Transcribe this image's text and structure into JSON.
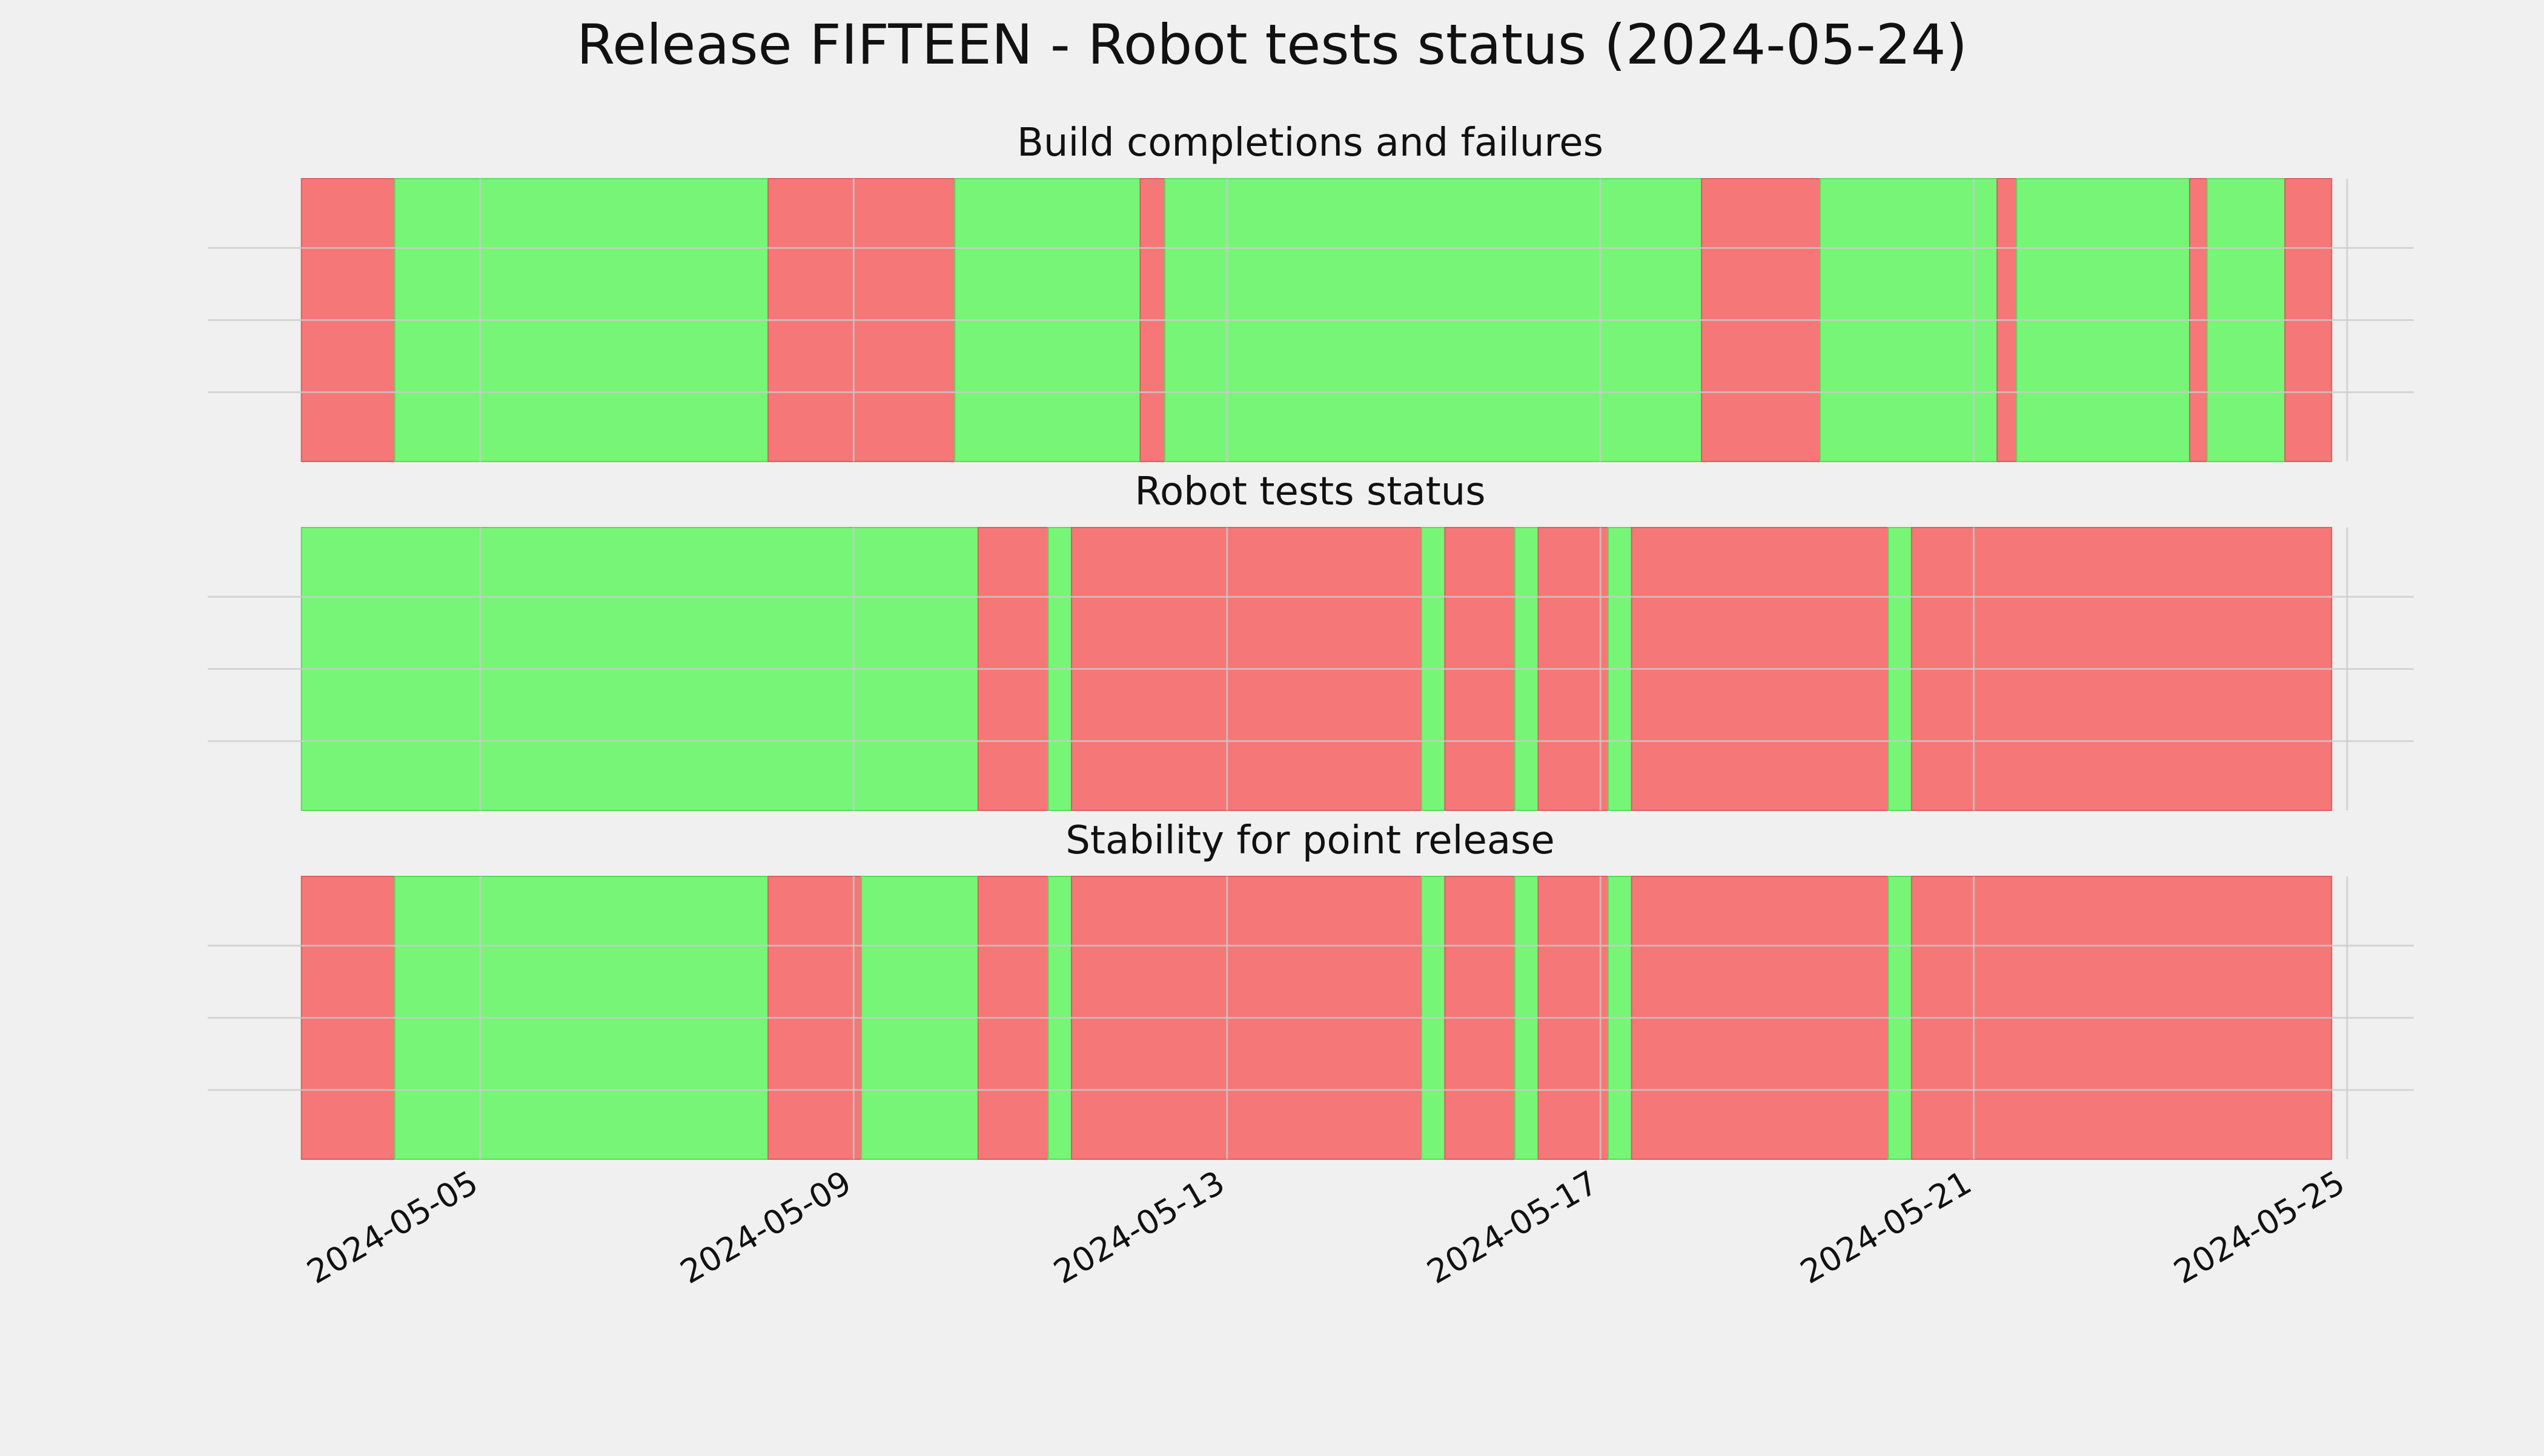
{
  "figure": {
    "title": "Release FIFTEEN - Robot tests status (2024-05-24)"
  },
  "colors": {
    "background": "#f0f0f0",
    "pass": "#77f577",
    "fail": "#f57777",
    "grid": "#cbcbcb"
  },
  "chart_data": [
    {
      "type": "timeline",
      "title": "Build completions and failures",
      "grid": true,
      "x_axis": {
        "min": "2024-05-03",
        "max": "2024-05-25",
        "ticks": [
          "2024-05-05",
          "2024-05-09",
          "2024-05-13",
          "2024-05-17",
          "2024-05-21",
          "2024-05-25"
        ]
      },
      "segments": [
        {
          "start": "2024-05-03 02:00",
          "end": "2024-05-04 02:00",
          "status": "fail"
        },
        {
          "start": "2024-05-04 02:00",
          "end": "2024-05-08 02:00",
          "status": "pass"
        },
        {
          "start": "2024-05-08 02:00",
          "end": "2024-05-10 02:00",
          "status": "fail"
        },
        {
          "start": "2024-05-10 02:00",
          "end": "2024-05-12 01:40",
          "status": "pass"
        },
        {
          "start": "2024-05-12 01:40",
          "end": "2024-05-12 08:00",
          "status": "fail"
        },
        {
          "start": "2024-05-12 08:00",
          "end": "2024-05-18 02:00",
          "status": "pass"
        },
        {
          "start": "2024-05-18 02:00",
          "end": "2024-05-19 08:30",
          "status": "fail"
        },
        {
          "start": "2024-05-19 08:30",
          "end": "2024-05-21 06:00",
          "status": "pass"
        },
        {
          "start": "2024-05-21 06:00",
          "end": "2024-05-21 11:00",
          "status": "fail"
        },
        {
          "start": "2024-05-21 11:00",
          "end": "2024-05-23 07:30",
          "status": "pass"
        },
        {
          "start": "2024-05-23 07:30",
          "end": "2024-05-23 12:00",
          "status": "fail"
        },
        {
          "start": "2024-05-23 12:00",
          "end": "2024-05-24 08:00",
          "status": "pass"
        },
        {
          "start": "2024-05-24 08:00",
          "end": "2024-05-24 20:00",
          "status": "fail"
        }
      ]
    },
    {
      "type": "timeline",
      "title": "Robot tests status",
      "grid": true,
      "x_axis": {
        "min": "2024-05-03",
        "max": "2024-05-25",
        "ticks": [
          "2024-05-05",
          "2024-05-09",
          "2024-05-13",
          "2024-05-17",
          "2024-05-21",
          "2024-05-25"
        ]
      },
      "segments": [
        {
          "start": "2024-05-03 02:00",
          "end": "2024-05-10 08:00",
          "status": "pass"
        },
        {
          "start": "2024-05-10 08:00",
          "end": "2024-05-11 02:00",
          "status": "fail"
        },
        {
          "start": "2024-05-11 02:00",
          "end": "2024-05-11 08:00",
          "status": "pass"
        },
        {
          "start": "2024-05-11 08:00",
          "end": "2024-05-15 02:00",
          "status": "fail"
        },
        {
          "start": "2024-05-15 02:00",
          "end": "2024-05-15 08:00",
          "status": "pass"
        },
        {
          "start": "2024-05-15 08:00",
          "end": "2024-05-16 02:00",
          "status": "fail"
        },
        {
          "start": "2024-05-16 02:00",
          "end": "2024-05-16 08:00",
          "status": "pass"
        },
        {
          "start": "2024-05-16 08:00",
          "end": "2024-05-17 02:00",
          "status": "fail"
        },
        {
          "start": "2024-05-17 02:00",
          "end": "2024-05-17 08:00",
          "status": "pass"
        },
        {
          "start": "2024-05-17 08:00",
          "end": "2024-05-20 02:00",
          "status": "fail"
        },
        {
          "start": "2024-05-20 02:00",
          "end": "2024-05-20 08:00",
          "status": "pass"
        },
        {
          "start": "2024-05-20 08:00",
          "end": "2024-05-24 20:00",
          "status": "fail"
        }
      ]
    },
    {
      "type": "timeline",
      "title": "Stability for point release",
      "grid": true,
      "x_axis": {
        "min": "2024-05-03",
        "max": "2024-05-25",
        "ticks": [
          "2024-05-05",
          "2024-05-09",
          "2024-05-13",
          "2024-05-17",
          "2024-05-21",
          "2024-05-25"
        ]
      },
      "segments": [
        {
          "start": "2024-05-03 02:00",
          "end": "2024-05-04 02:00",
          "status": "fail"
        },
        {
          "start": "2024-05-04 02:00",
          "end": "2024-05-08 02:00",
          "status": "pass"
        },
        {
          "start": "2024-05-08 02:00",
          "end": "2024-05-09 02:00",
          "status": "fail"
        },
        {
          "start": "2024-05-09 02:00",
          "end": "2024-05-10 08:00",
          "status": "pass"
        },
        {
          "start": "2024-05-10 08:00",
          "end": "2024-05-11 02:00",
          "status": "fail"
        },
        {
          "start": "2024-05-11 02:00",
          "end": "2024-05-11 08:00",
          "status": "pass"
        },
        {
          "start": "2024-05-11 08:00",
          "end": "2024-05-15 02:00",
          "status": "fail"
        },
        {
          "start": "2024-05-15 02:00",
          "end": "2024-05-15 08:00",
          "status": "pass"
        },
        {
          "start": "2024-05-15 08:00",
          "end": "2024-05-16 02:00",
          "status": "fail"
        },
        {
          "start": "2024-05-16 02:00",
          "end": "2024-05-16 08:00",
          "status": "pass"
        },
        {
          "start": "2024-05-16 08:00",
          "end": "2024-05-17 02:00",
          "status": "fail"
        },
        {
          "start": "2024-05-17 02:00",
          "end": "2024-05-17 08:00",
          "status": "pass"
        },
        {
          "start": "2024-05-17 08:00",
          "end": "2024-05-20 02:00",
          "status": "fail"
        },
        {
          "start": "2024-05-20 02:00",
          "end": "2024-05-20 08:00",
          "status": "pass"
        },
        {
          "start": "2024-05-20 08:00",
          "end": "2024-05-24 20:00",
          "status": "fail"
        }
      ]
    }
  ]
}
